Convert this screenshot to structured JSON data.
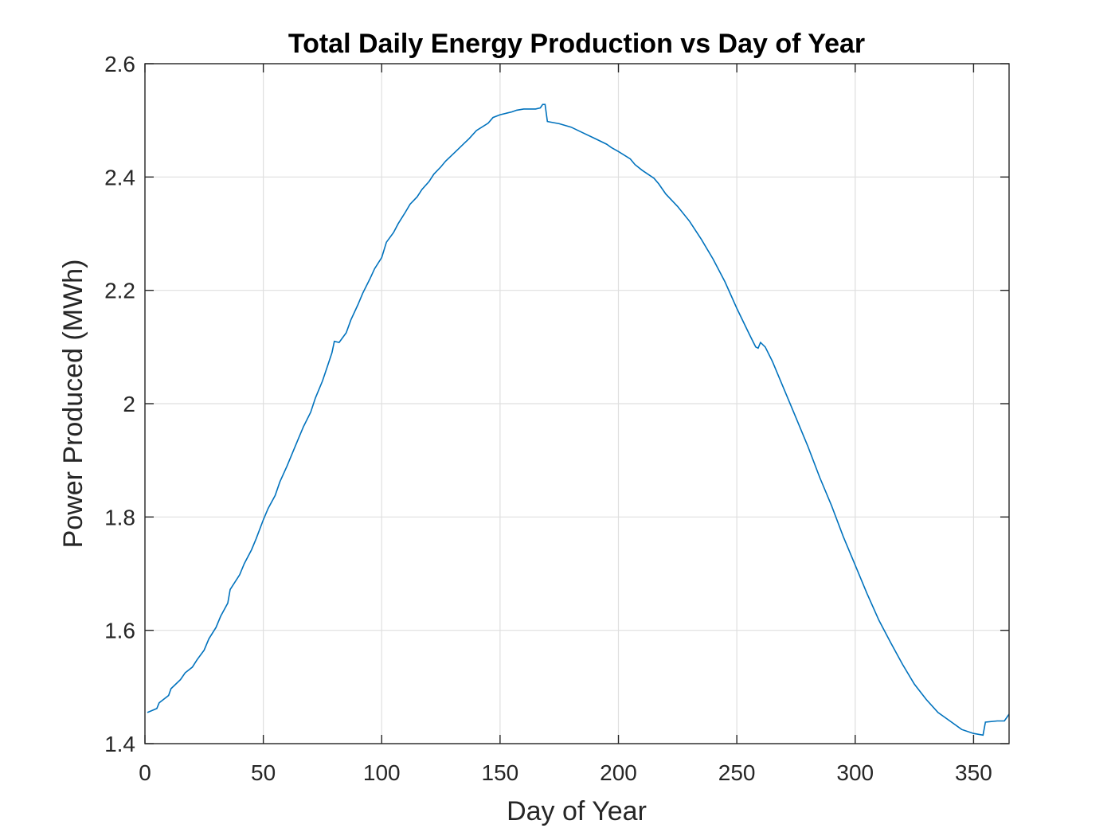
{
  "chart_data": {
    "type": "line",
    "title": "Total Daily Energy Production vs Day of Year",
    "xlabel": "Day of Year",
    "ylabel": "Power Produced (MWh)",
    "xlim": [
      0,
      365
    ],
    "ylim": [
      1.4,
      2.6
    ],
    "xticks": [
      0,
      50,
      100,
      150,
      200,
      250,
      300,
      350
    ],
    "xtick_labels": [
      "0",
      "50",
      "100",
      "150",
      "200",
      "250",
      "300",
      "350"
    ],
    "yticks": [
      1.4,
      1.6,
      1.8,
      2.0,
      2.2,
      2.4,
      2.6
    ],
    "ytick_labels": [
      "1.4",
      "1.6",
      "1.8",
      "2",
      "2.2",
      "2.4",
      "2.6"
    ],
    "grid": true,
    "line_color": "#0072BD",
    "series": [
      {
        "x": [
          1,
          5,
          6,
          10,
          11,
          15,
          17,
          20,
          22,
          25,
          27,
          30,
          32,
          35,
          36,
          40,
          42,
          45,
          47,
          50,
          52,
          55,
          57,
          60,
          62,
          65,
          67,
          70,
          72,
          75,
          77,
          79,
          80,
          82,
          85,
          87,
          90,
          92,
          95,
          97,
          100,
          102,
          105,
          107,
          110,
          112,
          115,
          117,
          120,
          122,
          125,
          127,
          130,
          132,
          135,
          137,
          140,
          145,
          147,
          150,
          155,
          157,
          160,
          165,
          167,
          168,
          169,
          170,
          175,
          180,
          185,
          190,
          195,
          197,
          200,
          205,
          207,
          210,
          215,
          217,
          220,
          225,
          230,
          235,
          240,
          245,
          250,
          255,
          257,
          258,
          259,
          260,
          262,
          265,
          270,
          275,
          280,
          285,
          290,
          295,
          300,
          305,
          310,
          315,
          320,
          325,
          330,
          335,
          340,
          345,
          350,
          354,
          355,
          360,
          363,
          365
        ],
        "y": [
          1.455,
          1.462,
          1.472,
          1.485,
          1.497,
          1.513,
          1.525,
          1.535,
          1.548,
          1.565,
          1.585,
          1.605,
          1.625,
          1.648,
          1.672,
          1.698,
          1.718,
          1.742,
          1.762,
          1.795,
          1.815,
          1.838,
          1.862,
          1.89,
          1.91,
          1.94,
          1.96,
          1.985,
          2.01,
          2.04,
          2.065,
          2.09,
          2.11,
          2.108,
          2.125,
          2.148,
          2.175,
          2.195,
          2.22,
          2.238,
          2.258,
          2.285,
          2.302,
          2.318,
          2.338,
          2.352,
          2.365,
          2.378,
          2.392,
          2.405,
          2.418,
          2.428,
          2.44,
          2.448,
          2.46,
          2.468,
          2.482,
          2.495,
          2.505,
          2.51,
          2.515,
          2.518,
          2.52,
          2.52,
          2.522,
          2.528,
          2.528,
          2.498,
          2.494,
          2.488,
          2.478,
          2.468,
          2.458,
          2.452,
          2.445,
          2.432,
          2.422,
          2.412,
          2.398,
          2.388,
          2.37,
          2.348,
          2.322,
          2.29,
          2.255,
          2.215,
          2.168,
          2.125,
          2.108,
          2.1,
          2.098,
          2.108,
          2.1,
          2.075,
          2.025,
          1.975,
          1.925,
          1.87,
          1.82,
          1.765,
          1.715,
          1.665,
          1.618,
          1.578,
          1.54,
          1.505,
          1.478,
          1.455,
          1.44,
          1.425,
          1.418,
          1.415,
          1.438,
          1.44,
          1.44,
          1.452
        ]
      }
    ]
  }
}
